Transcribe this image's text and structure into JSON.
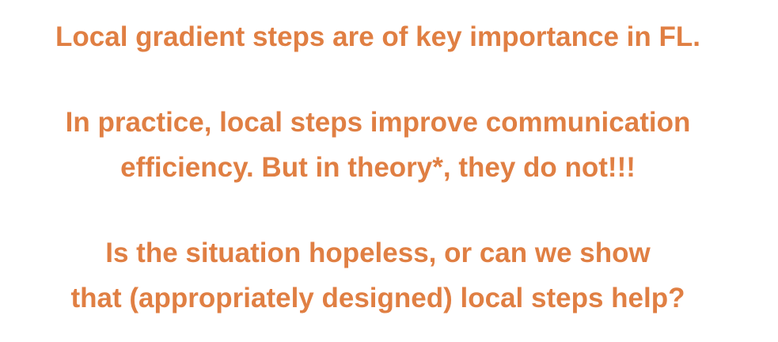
{
  "slide": {
    "lines": [
      "Local gradient steps are of key importance in FL.",
      "In practice, local steps improve communication",
      "efficiency. But in theory*, they do not!!!",
      "Is the situation hopeless, or can we show",
      "that (appropriately designed) local steps help?"
    ]
  },
  "colors": {
    "text": "#e07f43",
    "background": "#ffffff"
  }
}
